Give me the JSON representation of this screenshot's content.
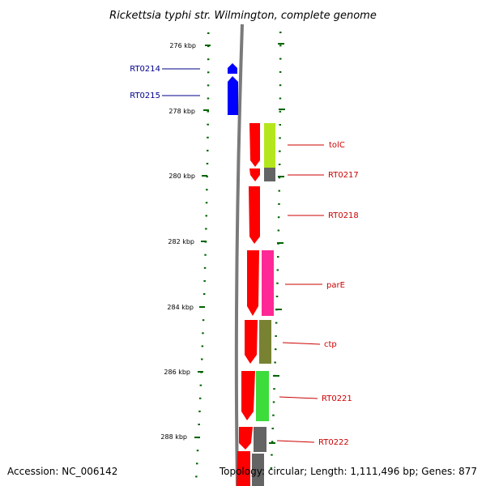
{
  "title": "Rickettsia typhi str. Wilmington, complete genome",
  "footer": {
    "accession": "Accession: NC_006142",
    "summary": "Topology: circular; Length: 1,111,496 bp; Genes: 877"
  },
  "scale": {
    "unit": "kbp",
    "ticks": [
      "276 kbp",
      "278 kbp",
      "280 kbp",
      "282 kbp",
      "284 kbp",
      "286 kbp",
      "288 kbp"
    ]
  },
  "colors": {
    "backbone": "#808080",
    "reverse_strand_gene": "#0000ff",
    "forward_strand_gene": "#ff0000",
    "tick": "#006400",
    "label_reverse": "#00008b",
    "label_forward": "#cc0000"
  },
  "genes": [
    {
      "name": "RT0214",
      "strand": "reverse",
      "color": "#0000ff"
    },
    {
      "name": "RT0215",
      "strand": "reverse",
      "color": "#0000ff"
    },
    {
      "name": "tolC",
      "strand": "forward",
      "color": "#ff0000",
      "cog_color": "#b4e61e"
    },
    {
      "name": "RT0217",
      "strand": "forward",
      "color": "#ff0000",
      "cog_color": "#646464"
    },
    {
      "name": "RT0218",
      "strand": "forward",
      "color": "#ff0000"
    },
    {
      "name": "parE",
      "strand": "forward",
      "color": "#ff0000",
      "cog_color": "#ff2896"
    },
    {
      "name": "ctp",
      "strand": "forward",
      "color": "#ff0000",
      "cog_color": "#788232"
    },
    {
      "name": "RT0221",
      "strand": "forward",
      "color": "#ff0000",
      "cog_color": "#3cdc3c"
    },
    {
      "name": "RT0222",
      "strand": "forward",
      "color": "#ff0000",
      "cog_color": "#646464"
    }
  ]
}
